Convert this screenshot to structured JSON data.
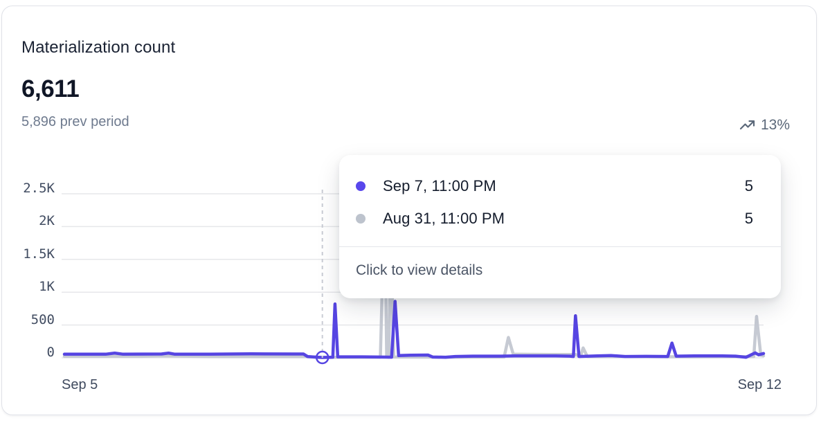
{
  "card": {
    "title": "Materialization count",
    "value": "6,611",
    "prev_period_label": "5,896 prev period",
    "trend": {
      "icon": "trending-up-icon",
      "label": "13%"
    }
  },
  "tooltip": {
    "rows": [
      {
        "series": "current",
        "dot_color": "#5847EC",
        "label": "Sep 7, 11:00 PM",
        "value": "5"
      },
      {
        "series": "previous",
        "dot_color": "#BDC3CD",
        "label": "Aug 31, 11:00 PM",
        "value": "5"
      }
    ],
    "footer": "Click to view details"
  },
  "colors": {
    "current_line": "#5645E2",
    "previous_line": "#C6CAD3",
    "gridline": "#E6E7EA",
    "crosshair": "#C9CCD4"
  },
  "chart_data": {
    "type": "line",
    "title": "Materialization count",
    "grid": true,
    "legend": "none",
    "x_axis": {
      "tick_labels": [
        "Sep 5",
        "Sep 12"
      ],
      "span_days": 7
    },
    "y_axis": {
      "tick_labels": [
        "2.5K",
        "2K",
        "1.5K",
        "1K",
        "500",
        "0"
      ],
      "tick_values": [
        2500,
        2000,
        1500,
        1000,
        500,
        0
      ],
      "range": [
        0,
        2500
      ]
    },
    "hover": {
      "x_frac": 0.369,
      "label": "Sep 7, 11:00 PM",
      "value": 5,
      "prev_value": 5
    },
    "series": [
      {
        "name": "current",
        "color": "#5645E2",
        "points": [
          [
            0.0,
            55
          ],
          [
            0.059,
            55
          ],
          [
            0.072,
            72
          ],
          [
            0.084,
            55
          ],
          [
            0.139,
            58
          ],
          [
            0.149,
            72
          ],
          [
            0.158,
            55
          ],
          [
            0.208,
            55
          ],
          [
            0.267,
            60
          ],
          [
            0.33,
            58
          ],
          [
            0.342,
            58
          ],
          [
            0.348,
            18
          ],
          [
            0.361,
            10
          ],
          [
            0.369,
            5
          ],
          [
            0.38,
            8
          ],
          [
            0.384,
            10
          ],
          [
            0.387,
            820
          ],
          [
            0.391,
            15
          ],
          [
            0.426,
            15
          ],
          [
            0.45,
            12
          ],
          [
            0.468,
            10
          ],
          [
            0.473,
            860
          ],
          [
            0.478,
            35
          ],
          [
            0.495,
            40
          ],
          [
            0.52,
            42
          ],
          [
            0.527,
            12
          ],
          [
            0.545,
            8
          ],
          [
            0.559,
            20
          ],
          [
            0.584,
            25
          ],
          [
            0.624,
            25
          ],
          [
            0.644,
            30
          ],
          [
            0.703,
            28
          ],
          [
            0.723,
            25
          ],
          [
            0.728,
            20
          ],
          [
            0.731,
            640
          ],
          [
            0.736,
            20
          ],
          [
            0.762,
            30
          ],
          [
            0.782,
            35
          ],
          [
            0.802,
            20
          ],
          [
            0.832,
            22
          ],
          [
            0.863,
            20
          ],
          [
            0.869,
            225
          ],
          [
            0.875,
            25
          ],
          [
            0.901,
            30
          ],
          [
            0.941,
            30
          ],
          [
            0.96,
            25
          ],
          [
            0.975,
            8
          ],
          [
            0.988,
            75
          ],
          [
            0.993,
            45
          ],
          [
            1.0,
            65
          ]
        ]
      },
      {
        "name": "previous",
        "color": "#C6CAD3",
        "points": [
          [
            0.0,
            22
          ],
          [
            0.109,
            22
          ],
          [
            0.139,
            30
          ],
          [
            0.208,
            20
          ],
          [
            0.347,
            18
          ],
          [
            0.366,
            5
          ],
          [
            0.452,
            10
          ],
          [
            0.458,
            2450
          ],
          [
            0.461,
            15
          ],
          [
            0.464,
            10
          ],
          [
            0.467,
            1900
          ],
          [
            0.471,
            12
          ],
          [
            0.545,
            10
          ],
          [
            0.629,
            12
          ],
          [
            0.635,
            310
          ],
          [
            0.642,
            55
          ],
          [
            0.693,
            50
          ],
          [
            0.731,
            50
          ],
          [
            0.738,
            20
          ],
          [
            0.742,
            150
          ],
          [
            0.748,
            18
          ],
          [
            0.802,
            18
          ],
          [
            0.901,
            15
          ],
          [
            0.98,
            18
          ],
          [
            0.986,
            20
          ],
          [
            0.99,
            630
          ],
          [
            0.996,
            40
          ],
          [
            1.0,
            30
          ]
        ]
      }
    ]
  }
}
